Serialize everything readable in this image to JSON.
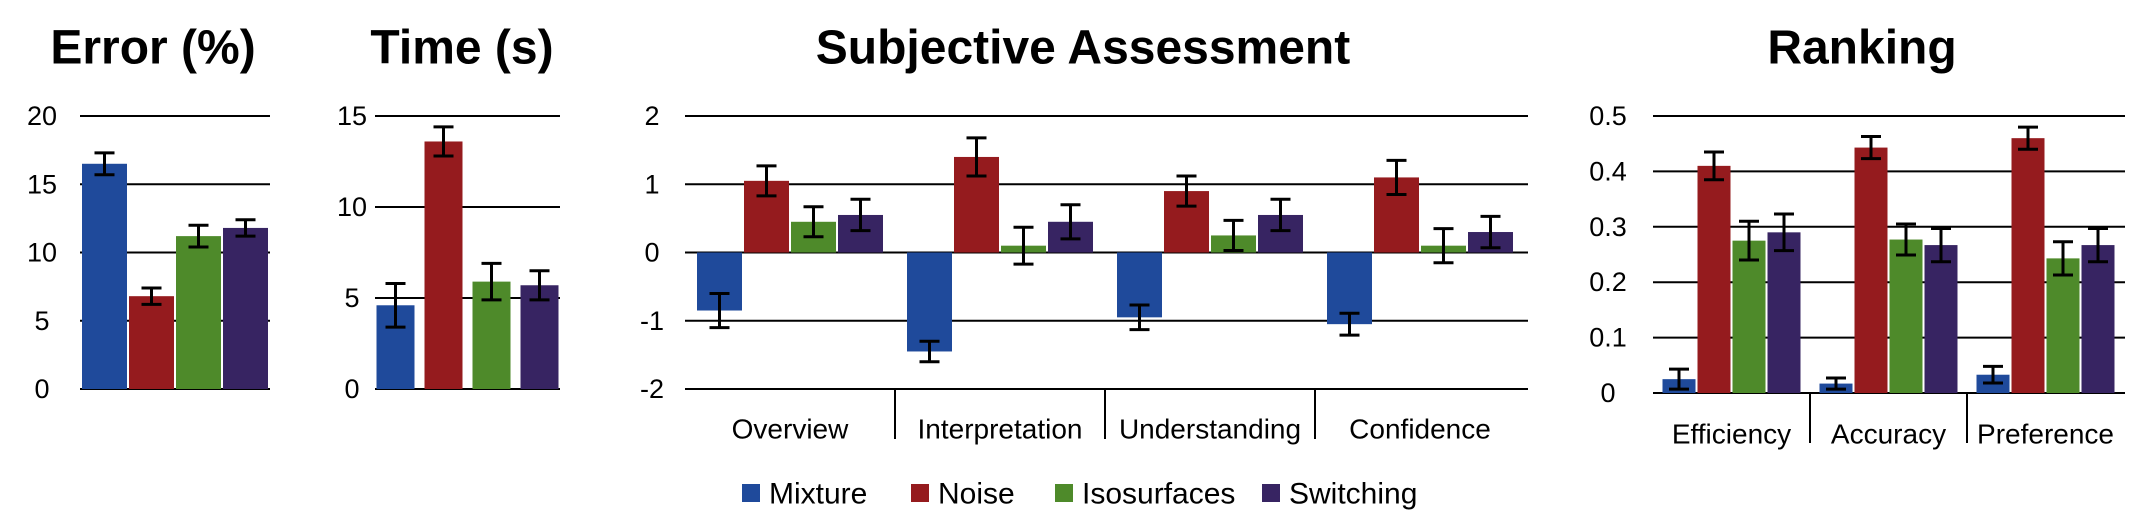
{
  "colors": {
    "Mixture": "#1f4a9b",
    "Noise": "#951b1e",
    "Isosurfaces": "#4e8a2a",
    "Switching": "#372462",
    "grid": "#000000"
  },
  "legend": {
    "items": [
      "Mixture",
      "Noise",
      "Isosurfaces",
      "Switching"
    ],
    "placement": "bottom-center"
  },
  "chart_data": [
    {
      "type": "bar",
      "title": "Error (%)",
      "categories": [
        ""
      ],
      "ylim": [
        0,
        20
      ],
      "yticks": [
        0,
        5,
        10,
        15,
        20
      ],
      "grid": true,
      "series": [
        {
          "name": "Mixture",
          "values": [
            16.5
          ],
          "errors": [
            0.8
          ]
        },
        {
          "name": "Noise",
          "values": [
            6.8
          ],
          "errors": [
            0.6
          ]
        },
        {
          "name": "Isosurfaces",
          "values": [
            11.2
          ],
          "errors": [
            0.8
          ]
        },
        {
          "name": "Switching",
          "values": [
            11.8
          ],
          "errors": [
            0.6
          ]
        }
      ]
    },
    {
      "type": "bar",
      "title": "Time (s)",
      "categories": [
        ""
      ],
      "ylim": [
        0,
        15
      ],
      "yticks": [
        0,
        5,
        10,
        15
      ],
      "grid": true,
      "series": [
        {
          "name": "Mixture",
          "values": [
            4.6
          ],
          "errors": [
            1.2
          ]
        },
        {
          "name": "Noise",
          "values": [
            13.6
          ],
          "errors": [
            0.8
          ]
        },
        {
          "name": "Isosurfaces",
          "values": [
            5.9
          ],
          "errors": [
            1.0
          ]
        },
        {
          "name": "Switching",
          "values": [
            5.7
          ],
          "errors": [
            0.8
          ]
        }
      ]
    },
    {
      "type": "bar",
      "title": "Subjective Assessment",
      "categories": [
        "Overview",
        "Interpretation",
        "Understanding",
        "Confidence"
      ],
      "ylim": [
        -2,
        2
      ],
      "yticks": [
        -2,
        -1,
        0,
        1,
        2
      ],
      "grid": true,
      "series": [
        {
          "name": "Mixture",
          "values": [
            -0.85,
            -1.45,
            -0.95,
            -1.05
          ],
          "errors": [
            0.25,
            0.15,
            0.18,
            0.16
          ]
        },
        {
          "name": "Noise",
          "values": [
            1.05,
            1.4,
            0.9,
            1.1
          ],
          "errors": [
            0.22,
            0.28,
            0.22,
            0.25
          ]
        },
        {
          "name": "Isosurfaces",
          "values": [
            0.45,
            0.1,
            0.25,
            0.1
          ],
          "errors": [
            0.22,
            0.27,
            0.22,
            0.25
          ]
        },
        {
          "name": "Switching",
          "values": [
            0.55,
            0.45,
            0.55,
            0.3
          ],
          "errors": [
            0.23,
            0.25,
            0.23,
            0.23
          ]
        }
      ]
    },
    {
      "type": "bar",
      "title": "Ranking",
      "categories": [
        "Efficiency",
        "Accuracy",
        "Preference"
      ],
      "ylim": [
        0,
        0.5
      ],
      "yticks": [
        0,
        0.1,
        0.2,
        0.3,
        0.4,
        0.5
      ],
      "grid": true,
      "series": [
        {
          "name": "Mixture",
          "values": [
            0.025,
            0.017,
            0.033
          ],
          "errors": [
            0.018,
            0.01,
            0.015
          ]
        },
        {
          "name": "Noise",
          "values": [
            0.41,
            0.443,
            0.46
          ],
          "errors": [
            0.025,
            0.02,
            0.02
          ]
        },
        {
          "name": "Isosurfaces",
          "values": [
            0.275,
            0.277,
            0.243
          ],
          "errors": [
            0.035,
            0.028,
            0.03
          ]
        },
        {
          "name": "Switching",
          "values": [
            0.29,
            0.267,
            0.267
          ],
          "errors": [
            0.033,
            0.03,
            0.03
          ]
        }
      ]
    }
  ]
}
